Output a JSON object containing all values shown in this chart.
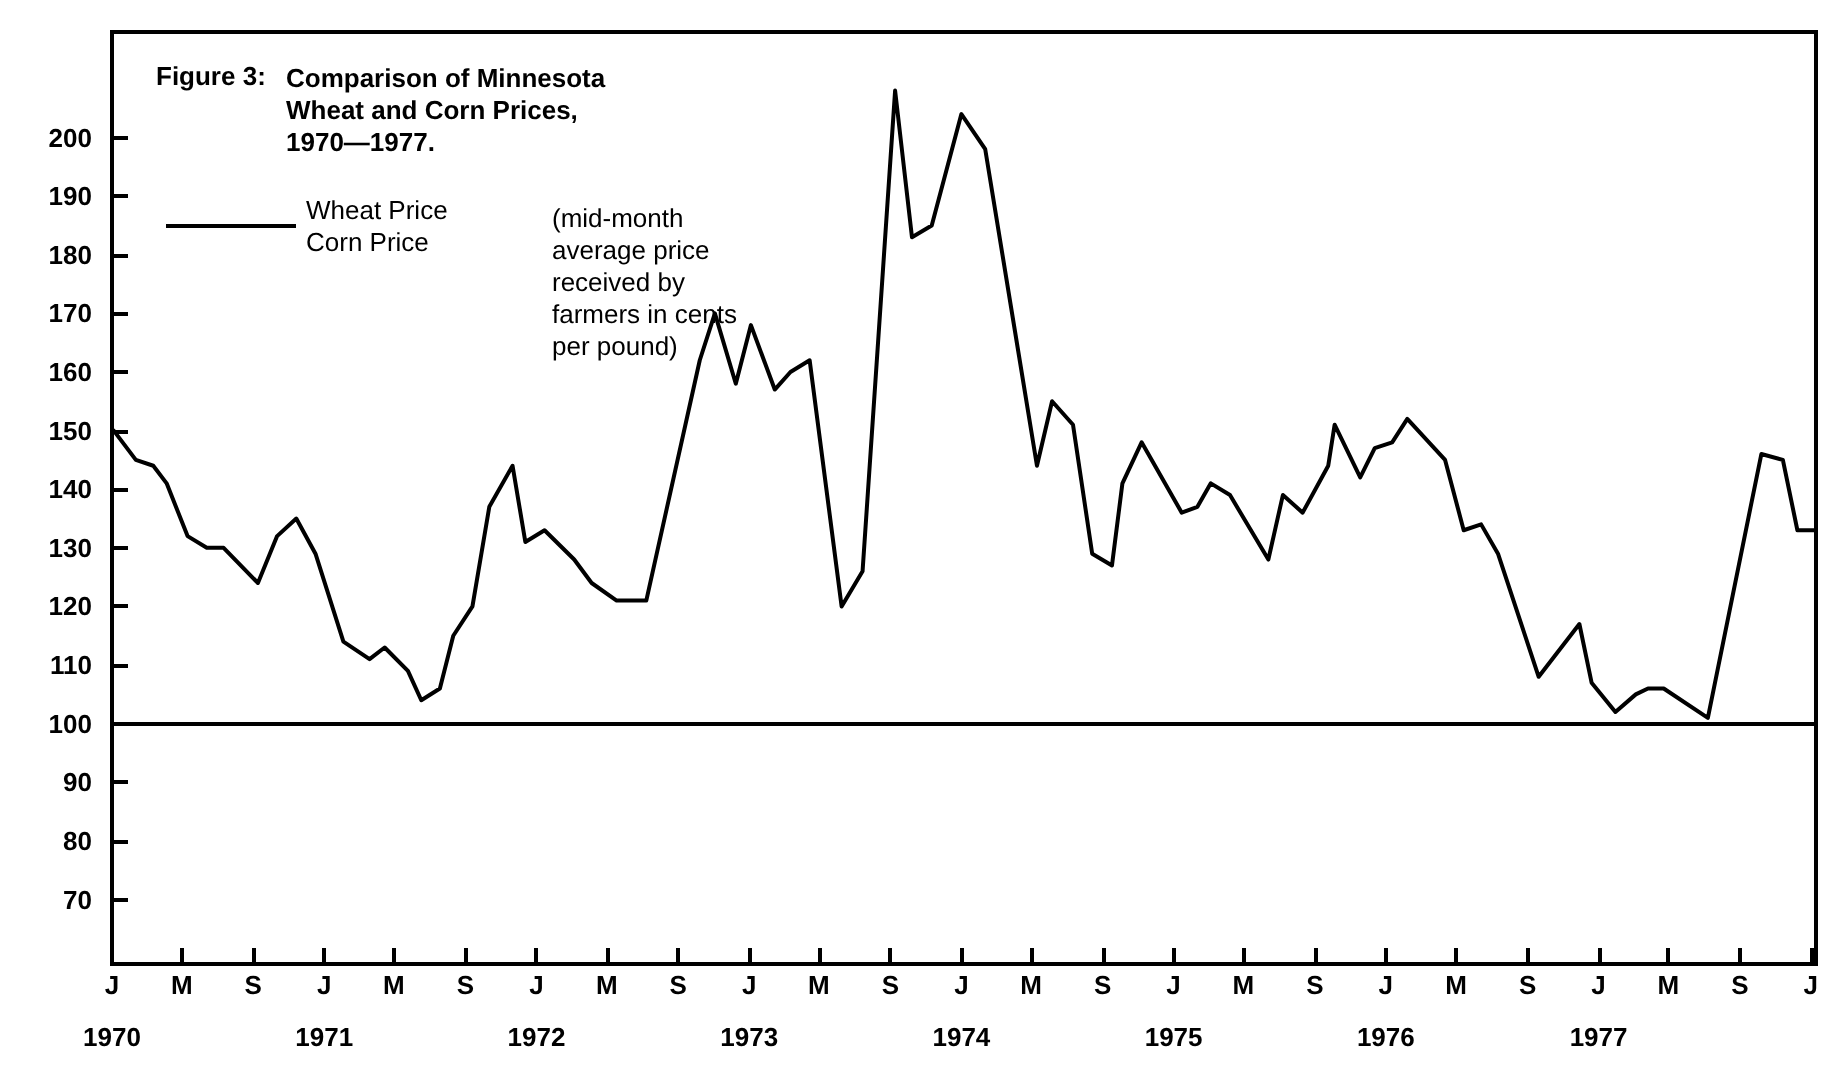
{
  "chart_data": {
    "type": "line",
    "title": "Comparison of Minnesota\nWheat and Corn Prices,\n1970—1977.",
    "annotations": [
      "Figure 3:",
      "(mid-month\naverage price\nreceived by\nfarmers in cents\nper pound)"
    ],
    "legend": "top left",
    "marker": "none",
    "line_style": "solid",
    "grid": false,
    "series": [
      {
        "name": "Wheat Price\nCorn Price",
        "color": "#000000",
        "x": [
          "1970-01-04",
          "1970-02-11",
          "1970-03-13",
          "1970-04-05",
          "1970-05-11",
          "1970-06-13",
          "1970-07-12",
          "1970-09-09",
          "1970-10-12",
          "1970-11-14",
          "1970-12-17",
          "1971-02-03",
          "1971-03-20",
          "1971-04-15",
          "1971-05-25",
          "1971-06-17",
          "1971-07-19",
          "1971-08-11",
          "1971-09-13",
          "1971-10-12",
          "1971-11-21",
          "1971-12-13",
          "1972-01-15",
          "1972-03-06",
          "1972-04-05",
          "1972-05-18",
          "1972-07-08",
          "1972-10-08",
          "1972-11-03",
          "1972-12-09",
          "1973-01-04",
          "1973-02-14",
          "1973-03-13",
          "1973-04-15",
          "1973-06-09",
          "1973-07-15",
          "1973-09-09",
          "1973-10-08",
          "1973-11-11",
          "1974-01-01",
          "1974-02-11",
          "1974-05-11",
          "1974-06-06",
          "1974-07-12",
          "1974-08-14",
          "1974-09-17",
          "1974-10-05",
          "1974-11-07",
          "1975-01-15",
          "1975-02-11",
          "1975-03-06",
          "1975-04-08",
          "1975-06-13",
          "1975-07-08",
          "1975-08-11",
          "1975-09-24",
          "1975-10-05",
          "1975-11-18",
          "1975-12-13",
          "1976-01-12",
          "1976-02-07",
          "1976-04-12",
          "1976-05-14",
          "1976-06-13",
          "1976-07-12",
          "1976-09-20",
          "1976-11-29",
          "1976-12-20",
          "1977-01-30",
          "1977-03-06",
          "1977-03-27",
          "1977-04-23",
          "1977-07-08",
          "1977-10-08",
          "1977-11-14",
          "1977-12-09",
          "1978-01-10"
        ],
        "values": [
          150,
          145,
          144,
          141,
          132,
          130,
          130,
          124,
          132,
          135,
          129,
          114,
          111,
          113,
          109,
          104,
          106,
          115,
          120,
          137,
          144,
          131,
          133,
          128,
          124,
          121,
          121,
          162,
          170,
          158,
          168,
          157,
          160,
          162,
          120,
          126,
          208,
          183,
          185,
          204,
          198,
          144,
          155,
          151,
          129,
          127,
          141,
          148,
          136,
          137,
          141,
          139,
          128,
          139,
          136,
          144,
          151,
          142,
          147,
          148,
          152,
          145,
          133,
          134,
          129,
          108,
          117,
          107,
          102,
          105,
          106,
          106,
          101,
          146,
          145,
          133,
          133
        ]
      }
    ],
    "ref_lines": [
      {
        "axis": "y",
        "value": 100
      }
    ],
    "xlim": [
      "1970-01-01",
      "1978-01-10"
    ],
    "xticks": [
      {
        "value": "1970-01-01",
        "label": "J\n\n1970"
      },
      {
        "value": "1970-05-01",
        "label": "M"
      },
      {
        "value": "1970-09-01",
        "label": "S"
      },
      {
        "value": "1971-01-01",
        "label": "J\n\n1971"
      },
      {
        "value": "1971-05-01",
        "label": "M"
      },
      {
        "value": "1971-09-01",
        "label": "S"
      },
      {
        "value": "1972-01-01",
        "label": "J\n\n1972"
      },
      {
        "value": "1972-05-01",
        "label": "M"
      },
      {
        "value": "1972-09-01",
        "label": "S"
      },
      {
        "value": "1973-01-01",
        "label": "J\n\n1973"
      },
      {
        "value": "1973-05-01",
        "label": "M"
      },
      {
        "value": "1973-09-01",
        "label": "S"
      },
      {
        "value": "1974-01-01",
        "label": "J\n\n1974"
      },
      {
        "value": "1974-05-01",
        "label": "M"
      },
      {
        "value": "1974-09-01",
        "label": "S"
      },
      {
        "value": "1975-01-01",
        "label": "J\n\n1975"
      },
      {
        "value": "1975-05-01",
        "label": "M"
      },
      {
        "value": "1975-09-01",
        "label": "S"
      },
      {
        "value": "1976-01-01",
        "label": "J\n\n1976"
      },
      {
        "value": "1976-05-01",
        "label": "M"
      },
      {
        "value": "1976-09-01",
        "label": "S"
      },
      {
        "value": "1977-01-01",
        "label": "J\n\n1977"
      },
      {
        "value": "1977-05-01",
        "label": "M"
      },
      {
        "value": "1977-09-01",
        "label": "S"
      },
      {
        "value": "1978-01-01",
        "label": "J"
      }
    ],
    "ylim": [
      59,
      218
    ],
    "yticks": [
      70,
      80,
      90,
      100,
      110,
      120,
      130,
      140,
      150,
      160,
      170,
      180,
      190,
      200
    ]
  }
}
